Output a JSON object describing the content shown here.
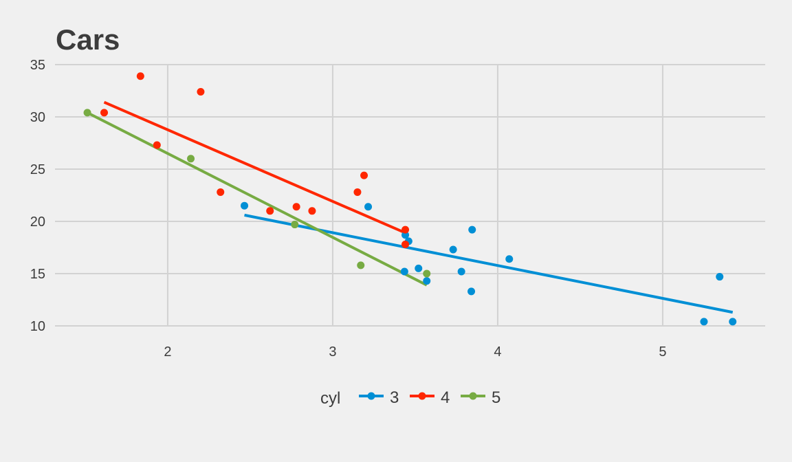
{
  "chart_data": {
    "type": "scatter",
    "title": "Cars",
    "xlabel": "",
    "ylabel": "",
    "xlim": [
      1.317,
      5.621
    ],
    "ylim": [
      10,
      35
    ],
    "x_ticks": [
      2,
      3,
      4,
      5
    ],
    "y_ticks": [
      10,
      15,
      20,
      25,
      30,
      35
    ],
    "x_tick_labels": [
      "2",
      "3",
      "4",
      "5"
    ],
    "y_tick_labels": [
      "10",
      "15",
      "20",
      "25",
      "30",
      "35"
    ],
    "grid": true,
    "legend": {
      "title": "cyl",
      "placement": "bottom"
    },
    "series": [
      {
        "name": "3",
        "color": "#008FD5",
        "points": [
          [
            3.215,
            21.4
          ],
          [
            3.44,
            18.7
          ],
          [
            3.46,
            18.1
          ],
          [
            3.57,
            14.3
          ],
          [
            4.07,
            16.4
          ],
          [
            3.73,
            17.3
          ],
          [
            3.78,
            15.2
          ],
          [
            5.25,
            10.4
          ],
          [
            5.424,
            10.4
          ],
          [
            5.345,
            14.7
          ],
          [
            2.465,
            21.5
          ],
          [
            3.52,
            15.5
          ],
          [
            3.435,
            15.2
          ],
          [
            3.84,
            13.3
          ],
          [
            3.845,
            19.2
          ]
        ],
        "fit_line": [
          [
            2.465,
            20.6
          ],
          [
            5.424,
            11.3
          ]
        ]
      },
      {
        "name": "4",
        "color": "#FF2700",
        "points": [
          [
            2.62,
            21.0
          ],
          [
            2.875,
            21.0
          ],
          [
            2.32,
            22.8
          ],
          [
            3.19,
            24.4
          ],
          [
            3.15,
            22.8
          ],
          [
            3.44,
            19.2
          ],
          [
            3.44,
            17.8
          ],
          [
            2.2,
            32.4
          ],
          [
            1.615,
            30.4
          ],
          [
            1.835,
            33.9
          ],
          [
            1.935,
            27.3
          ],
          [
            2.78,
            21.4
          ]
        ],
        "fit_line": [
          [
            1.615,
            31.4
          ],
          [
            3.44,
            18.9
          ]
        ]
      },
      {
        "name": "5",
        "color": "#77AB43",
        "points": [
          [
            2.14,
            26.0
          ],
          [
            1.513,
            30.4
          ],
          [
            3.17,
            15.8
          ],
          [
            2.77,
            19.7
          ],
          [
            3.57,
            15.0
          ]
        ],
        "fit_line": [
          [
            1.513,
            30.4
          ],
          [
            3.57,
            13.9
          ]
        ]
      }
    ]
  }
}
